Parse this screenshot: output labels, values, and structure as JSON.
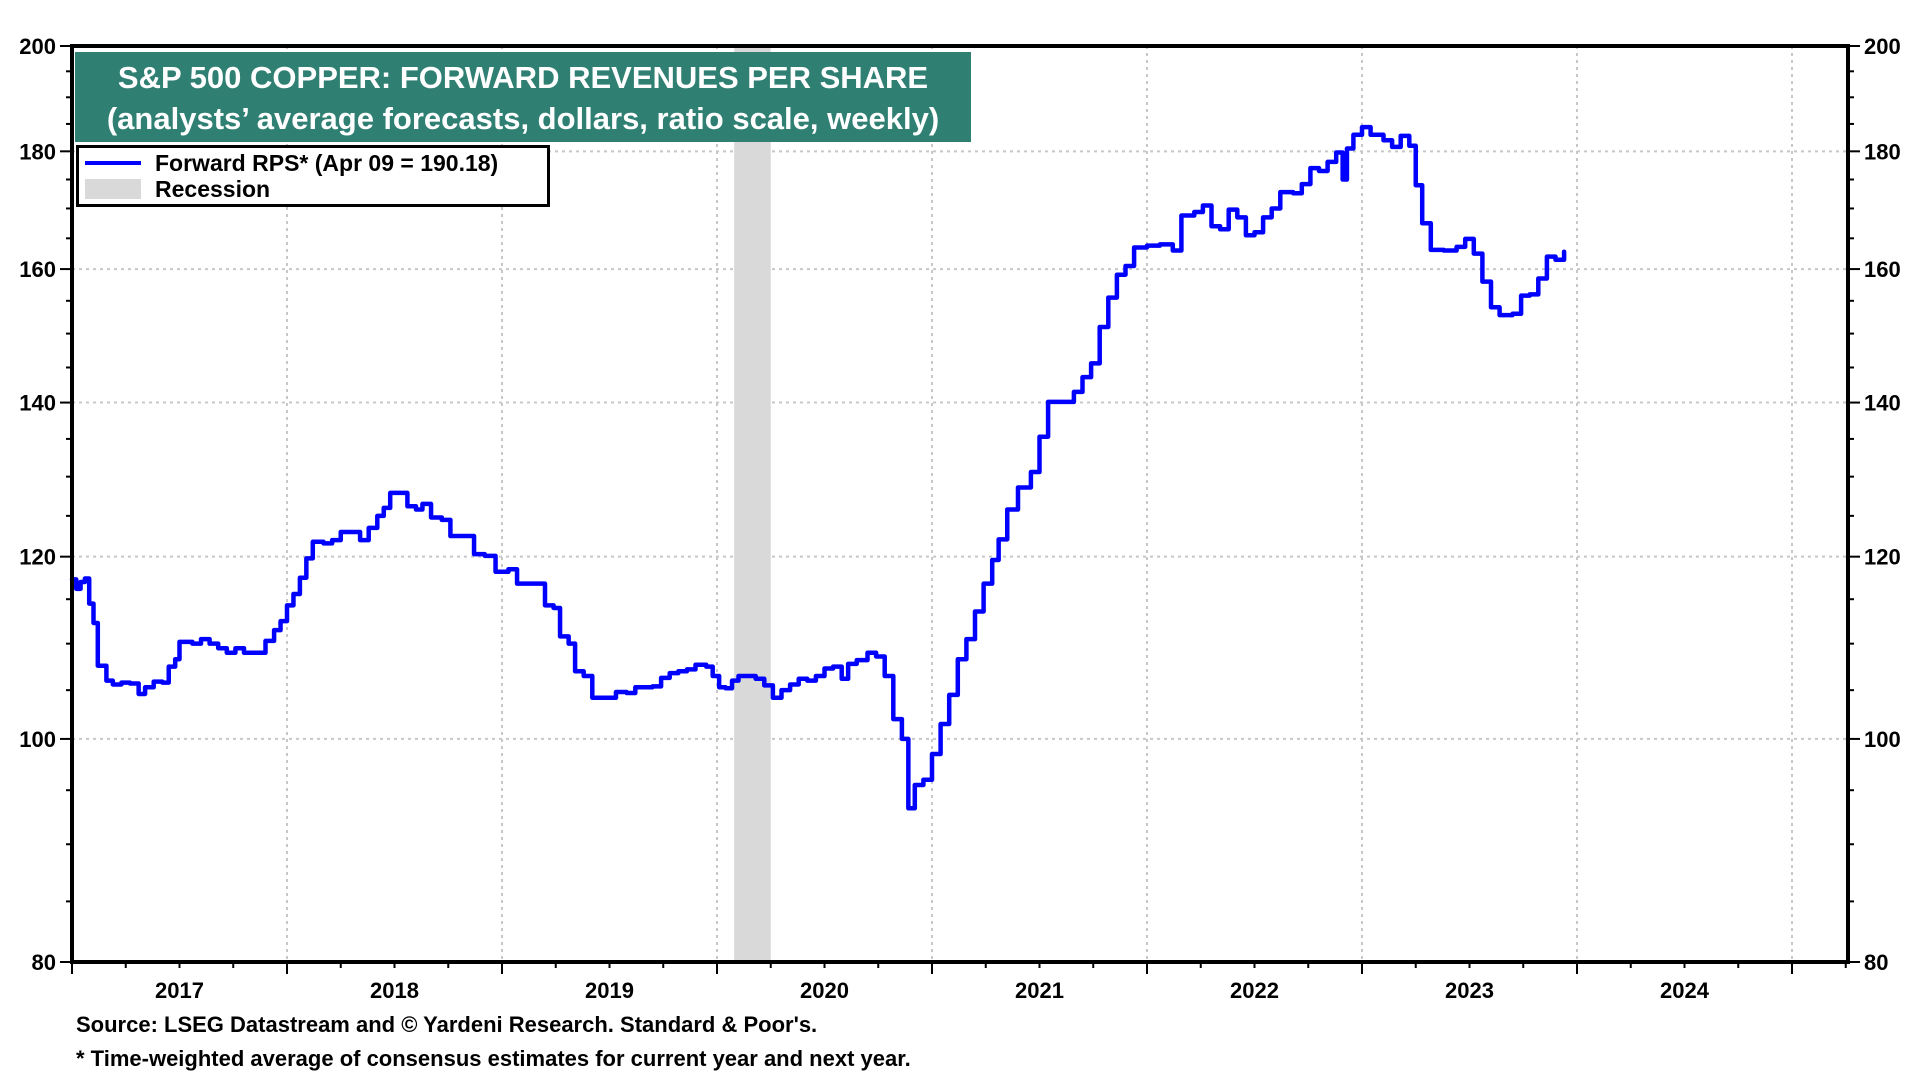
{
  "chart_data": {
    "type": "line",
    "title": "S&P 500 COPPER: FORWARD REVENUES PER SHARE",
    "subtitle": "(analysts’ average forecasts, dollars, ratio scale, weekly)",
    "xlabel": "",
    "ylabel": "",
    "yscale": "log",
    "ylim": [
      80,
      200
    ],
    "xlim": [
      2017.0,
      2025.27
    ],
    "grid": true,
    "legend_position": "top-left",
    "y_ticks": [
      80,
      100,
      120,
      140,
      160,
      180,
      200
    ],
    "y_tick_labels": [
      "80",
      "100",
      "120",
      "140",
      "160",
      "180",
      "200"
    ],
    "x_tick_labels": [
      "2017",
      "2018",
      "2019",
      "2020",
      "2021",
      "2022",
      "2023",
      "2024"
    ],
    "x_tick_years": [
      2017,
      2018,
      2019,
      2020,
      2021,
      2022,
      2023,
      2024
    ],
    "legend": [
      {
        "label": "Forward RPS* (Apr 09 = 190.18)",
        "type": "line",
        "color": "#0000ff"
      },
      {
        "label": "Recession",
        "type": "area",
        "color": "#d9d9d9"
      }
    ],
    "recessions": [
      {
        "start": 2020.08,
        "end": 2020.25
      }
    ],
    "series": [
      {
        "name": "Forward RPS",
        "color": "#0000ff",
        "points": [
          [
            2017.0,
            117.3
          ],
          [
            2017.02,
            116.2
          ],
          [
            2017.04,
            117.0
          ],
          [
            2017.06,
            117.4
          ],
          [
            2017.08,
            114.5
          ],
          [
            2017.1,
            112.3
          ],
          [
            2017.12,
            107.6
          ],
          [
            2017.14,
            107.6
          ],
          [
            2017.16,
            106.0
          ],
          [
            2017.19,
            105.6
          ],
          [
            2017.23,
            105.8
          ],
          [
            2017.27,
            105.7
          ],
          [
            2017.31,
            104.6
          ],
          [
            2017.34,
            105.3
          ],
          [
            2017.38,
            105.9
          ],
          [
            2017.42,
            105.8
          ],
          [
            2017.45,
            107.5
          ],
          [
            2017.48,
            108.3
          ],
          [
            2017.5,
            110.2
          ],
          [
            2017.56,
            110.0
          ],
          [
            2017.6,
            110.5
          ],
          [
            2017.64,
            110.0
          ],
          [
            2017.68,
            109.5
          ],
          [
            2017.72,
            109.0
          ],
          [
            2017.76,
            109.5
          ],
          [
            2017.8,
            109.0
          ],
          [
            2017.86,
            109.0
          ],
          [
            2017.9,
            110.3
          ],
          [
            2017.94,
            111.5
          ],
          [
            2017.97,
            112.5
          ],
          [
            2018.0,
            114.3
          ],
          [
            2018.03,
            115.6
          ],
          [
            2018.06,
            117.5
          ],
          [
            2018.09,
            119.8
          ],
          [
            2018.12,
            121.8
          ],
          [
            2018.17,
            121.6
          ],
          [
            2018.21,
            122.0
          ],
          [
            2018.25,
            123.0
          ],
          [
            2018.31,
            123.0
          ],
          [
            2018.34,
            122.0
          ],
          [
            2018.38,
            123.5
          ],
          [
            2018.42,
            125.0
          ],
          [
            2018.45,
            126.0
          ],
          [
            2018.48,
            127.9
          ],
          [
            2018.53,
            127.9
          ],
          [
            2018.56,
            126.2
          ],
          [
            2018.6,
            125.8
          ],
          [
            2018.63,
            126.5
          ],
          [
            2018.67,
            124.8
          ],
          [
            2018.72,
            124.5
          ],
          [
            2018.76,
            122.5
          ],
          [
            2018.82,
            122.5
          ],
          [
            2018.87,
            120.3
          ],
          [
            2018.92,
            120.1
          ],
          [
            2018.97,
            118.2
          ],
          [
            2019.03,
            118.5
          ],
          [
            2019.07,
            116.8
          ],
          [
            2019.16,
            116.8
          ],
          [
            2019.2,
            114.3
          ],
          [
            2019.24,
            114.0
          ],
          [
            2019.27,
            110.8
          ],
          [
            2019.31,
            110.0
          ],
          [
            2019.34,
            107.0
          ],
          [
            2019.38,
            106.5
          ],
          [
            2019.42,
            104.2
          ],
          [
            2019.5,
            104.2
          ],
          [
            2019.53,
            104.8
          ],
          [
            2019.58,
            104.7
          ],
          [
            2019.62,
            105.3
          ],
          [
            2019.7,
            105.4
          ],
          [
            2019.74,
            106.3
          ],
          [
            2019.78,
            106.8
          ],
          [
            2019.82,
            107.0
          ],
          [
            2019.86,
            107.2
          ],
          [
            2019.9,
            107.7
          ],
          [
            2019.95,
            107.5
          ],
          [
            2019.98,
            106.5
          ],
          [
            2020.01,
            105.3
          ],
          [
            2020.04,
            105.2
          ],
          [
            2020.07,
            106.0
          ],
          [
            2020.1,
            106.5
          ],
          [
            2020.14,
            106.5
          ],
          [
            2020.18,
            106.2
          ],
          [
            2020.22,
            105.5
          ],
          [
            2020.26,
            104.2
          ],
          [
            2020.3,
            105.0
          ],
          [
            2020.34,
            105.6
          ],
          [
            2020.38,
            106.2
          ],
          [
            2020.42,
            106.0
          ],
          [
            2020.46,
            106.5
          ],
          [
            2020.5,
            107.3
          ],
          [
            2020.54,
            107.5
          ],
          [
            2020.58,
            106.2
          ],
          [
            2020.61,
            107.8
          ],
          [
            2020.65,
            108.2
          ],
          [
            2020.7,
            109.0
          ],
          [
            2020.74,
            108.6
          ],
          [
            2020.78,
            106.5
          ],
          [
            2020.82,
            102.0
          ],
          [
            2020.86,
            100.0
          ],
          [
            2020.89,
            93.3
          ],
          [
            2020.92,
            95.5
          ],
          [
            2020.96,
            96.0
          ],
          [
            2021.0,
            98.5
          ],
          [
            2021.04,
            101.5
          ],
          [
            2021.08,
            104.5
          ],
          [
            2021.12,
            108.3
          ],
          [
            2021.16,
            110.5
          ],
          [
            2021.2,
            113.6
          ],
          [
            2021.24,
            116.8
          ],
          [
            2021.28,
            119.6
          ],
          [
            2021.31,
            122.1
          ],
          [
            2021.35,
            125.8
          ],
          [
            2021.4,
            128.6
          ],
          [
            2021.46,
            130.6
          ],
          [
            2021.5,
            135.3
          ],
          [
            2021.54,
            140.1
          ],
          [
            2021.62,
            140.1
          ],
          [
            2021.66,
            141.5
          ],
          [
            2021.7,
            143.6
          ],
          [
            2021.74,
            145.6
          ],
          [
            2021.78,
            151.0
          ],
          [
            2021.82,
            155.5
          ],
          [
            2021.86,
            159.1
          ],
          [
            2021.9,
            160.5
          ],
          [
            2021.94,
            163.5
          ],
          [
            2022.0,
            163.8
          ],
          [
            2022.06,
            164.0
          ],
          [
            2022.12,
            163.0
          ],
          [
            2022.16,
            168.8
          ],
          [
            2022.22,
            169.4
          ],
          [
            2022.26,
            170.5
          ],
          [
            2022.3,
            167.0
          ],
          [
            2022.34,
            166.5
          ],
          [
            2022.38,
            169.8
          ],
          [
            2022.42,
            168.5
          ],
          [
            2022.46,
            165.5
          ],
          [
            2022.5,
            166.0
          ],
          [
            2022.54,
            168.5
          ],
          [
            2022.58,
            170.0
          ],
          [
            2022.62,
            172.8
          ],
          [
            2022.68,
            172.6
          ],
          [
            2022.72,
            174.2
          ],
          [
            2022.76,
            177.0
          ],
          [
            2022.8,
            176.5
          ],
          [
            2022.84,
            178.1
          ],
          [
            2022.88,
            179.8
          ],
          [
            2022.91,
            175.0
          ],
          [
            2022.93,
            180.5
          ],
          [
            2022.96,
            183.0
          ],
          [
            2023.0,
            184.4
          ],
          [
            2023.04,
            183.0
          ],
          [
            2023.1,
            182.0
          ],
          [
            2023.14,
            180.8
          ],
          [
            2023.18,
            182.8
          ],
          [
            2023.22,
            181.0
          ],
          [
            2023.25,
            174.0
          ],
          [
            2023.28,
            167.5
          ],
          [
            2023.32,
            163.1
          ],
          [
            2023.38,
            163.0
          ],
          [
            2023.44,
            163.6
          ],
          [
            2023.48,
            164.9
          ],
          [
            2023.52,
            162.5
          ],
          [
            2023.56,
            158.0
          ],
          [
            2023.6,
            154.0
          ],
          [
            2023.64,
            152.8
          ],
          [
            2023.7,
            153.0
          ],
          [
            2023.74,
            155.8
          ],
          [
            2023.78,
            156.0
          ],
          [
            2023.82,
            158.5
          ],
          [
            2023.86,
            162.0
          ],
          [
            2023.9,
            161.5
          ],
          [
            2023.94,
            162.8
          ]
        ]
      }
    ]
  },
  "legend": {
    "series_label": "Forward RPS* (Apr 09 = 190.18)",
    "recession_label": "Recession"
  },
  "title_box": {
    "line1": "S&P 500 COPPER: FORWARD REVENUES PER SHARE",
    "line2": "(analysts’ average forecasts, dollars, ratio scale, weekly)"
  },
  "footer": {
    "source": "Source: LSEG Datastream and © Yardeni Research. Standard & Poor's.",
    "note": "* Time-weighted average of consensus estimates for current year and next year."
  }
}
